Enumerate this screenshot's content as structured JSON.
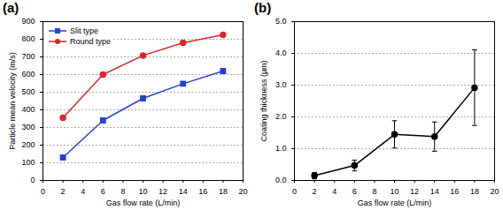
{
  "chart_data": [
    {
      "type": "line",
      "title": "(a)",
      "x_label": "Gas flow rate (L/min)",
      "y_label": "Particle mean velocity (m/s)",
      "xlim": [
        0,
        20
      ],
      "xticks": [
        0,
        2,
        4,
        6,
        8,
        10,
        12,
        14,
        16,
        18,
        20
      ],
      "ylim": [
        0,
        900
      ],
      "yticks": [
        0,
        100,
        200,
        300,
        400,
        500,
        600,
        700,
        800,
        900
      ],
      "grid": true,
      "legend": "upper left",
      "x": [
        2,
        6,
        10,
        14,
        18
      ],
      "series": [
        {
          "name": "Slit type",
          "color": "#2b3fd6",
          "marker": "square",
          "values": [
            130,
            340,
            465,
            548,
            620
          ]
        },
        {
          "name": "Round type",
          "color": "#e0252b",
          "marker": "circle",
          "values": [
            355,
            600,
            708,
            780,
            825
          ]
        }
      ]
    },
    {
      "type": "line",
      "title": "(b)",
      "x_label": "Gas flow rate (L/min)",
      "y_label": "Coating thickness (µm)",
      "xlim": [
        0,
        20
      ],
      "xticks": [
        0,
        2,
        4,
        6,
        8,
        10,
        12,
        14,
        16,
        18,
        20
      ],
      "ylim": [
        0,
        5
      ],
      "yticks": [
        0,
        1,
        2,
        3,
        4,
        5
      ],
      "grid": true,
      "x": [
        2,
        6,
        10,
        14,
        18
      ],
      "series": [
        {
          "color": "#000000",
          "marker": "circle",
          "values": [
            0.15,
            0.47,
            1.45,
            1.38,
            2.92
          ],
          "error": [
            0.1,
            0.17,
            0.43,
            0.46,
            1.19
          ]
        }
      ]
    }
  ]
}
